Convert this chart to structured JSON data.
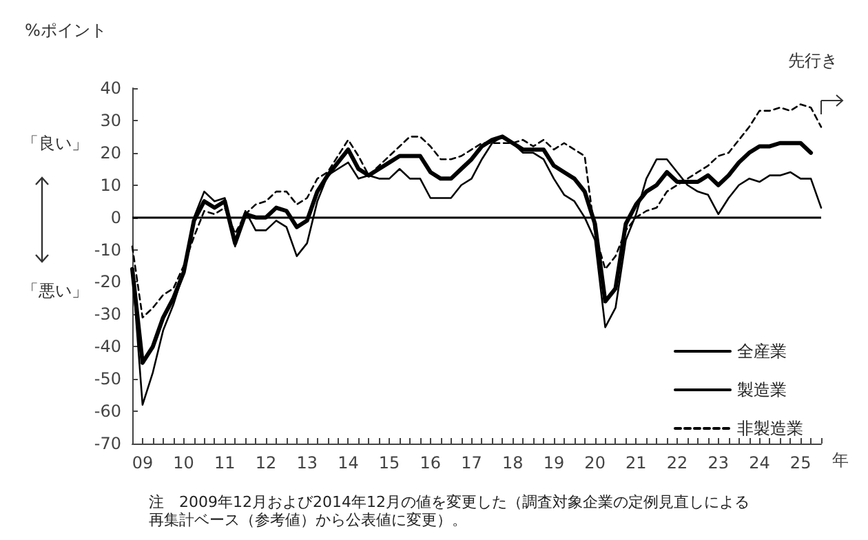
{
  "chart_data": {
    "type": "line",
    "ylabel": "%ポイント",
    "xlabel": "年",
    "categories": [
      null,
      "09",
      null,
      null,
      null,
      "10",
      null,
      null,
      null,
      "11",
      null,
      null,
      null,
      "12",
      null,
      null,
      null,
      "13",
      null,
      null,
      null,
      "14",
      null,
      null,
      null,
      "15",
      null,
      null,
      null,
      "16",
      null,
      null,
      null,
      "17",
      null,
      null,
      null,
      "18",
      null,
      null,
      null,
      "19",
      null,
      null,
      null,
      "20",
      null,
      null,
      null,
      "21",
      null,
      null,
      null,
      "22",
      null,
      null,
      null,
      "23",
      null,
      null,
      null,
      "24",
      null,
      null,
      null,
      "25",
      null,
      null
    ],
    "series": [
      {
        "name": "全産業",
        "color": "#000000",
        "line_style": "solid",
        "values": [
          -16,
          -45,
          -40,
          -31,
          -25,
          -17,
          -1,
          5,
          3,
          5,
          -8,
          1,
          0,
          0,
          3,
          2,
          -3,
          -1,
          8,
          13,
          17,
          21,
          15,
          13,
          15,
          17,
          19,
          19,
          19,
          14,
          12,
          12,
          15,
          18,
          22,
          24,
          25,
          23,
          21,
          21,
          21,
          16,
          14,
          12,
          8,
          -2,
          -26,
          -22,
          -2,
          4,
          8,
          10,
          14,
          11,
          11,
          11,
          13,
          10,
          13,
          17,
          20,
          22,
          22,
          23,
          23,
          23,
          20,
          null
        ]
      },
      {
        "name": "製造業",
        "color": "#000000",
        "line_style": "solid",
        "values": [
          -16,
          -58,
          -48,
          -35,
          -27,
          -17,
          0,
          8,
          5,
          6,
          -9,
          2,
          -4,
          -4,
          -1,
          -3,
          -12,
          -8,
          5,
          13,
          15,
          17,
          12,
          13,
          12,
          12,
          15,
          12,
          12,
          6,
          6,
          6,
          10,
          12,
          18,
          23,
          25,
          23,
          20,
          20,
          18,
          12,
          7,
          5,
          0,
          -7,
          -34,
          -28,
          -7,
          1,
          12,
          18,
          18,
          14,
          10,
          8,
          7,
          1,
          6,
          10,
          12,
          11,
          13,
          13,
          14,
          12,
          12,
          3
        ]
      },
      {
        "name": "非製造業",
        "color": "#000000",
        "line_style": "dashed",
        "values": [
          -9,
          -31,
          -28,
          -24,
          -22,
          -15,
          -6,
          2,
          1,
          3,
          -5,
          1,
          4,
          5,
          8,
          8,
          4,
          6,
          12,
          14,
          19,
          24,
          19,
          13,
          16,
          19,
          22,
          25,
          25,
          22,
          18,
          18,
          19,
          21,
          23,
          23,
          23,
          23,
          24,
          22,
          24,
          21,
          23,
          21,
          19,
          -5,
          -16,
          -12,
          -4,
          0,
          2,
          3,
          8,
          10,
          12,
          14,
          16,
          19,
          20,
          24,
          28,
          33,
          33,
          34,
          33,
          35,
          34,
          28
        ]
      }
    ],
    "ylim": [
      -70,
      40
    ],
    "yticks": [
      -70,
      -60,
      -50,
      -40,
      -30,
      -20,
      -10,
      0,
      10,
      20,
      30,
      40
    ],
    "ref_lines": [
      {
        "axis": "y",
        "value": 0,
        "color": "#000000"
      }
    ],
    "annotations": [
      "「良い」",
      "「悪い」",
      "先行き",
      "注　2009年12月および2014年12月の値を変更した（調査対象企業の定例見直しによる再集計ベース（参考値）から公表値に変更）。"
    ],
    "legend": "bottom right",
    "grid": false,
    "marker": "none"
  }
}
